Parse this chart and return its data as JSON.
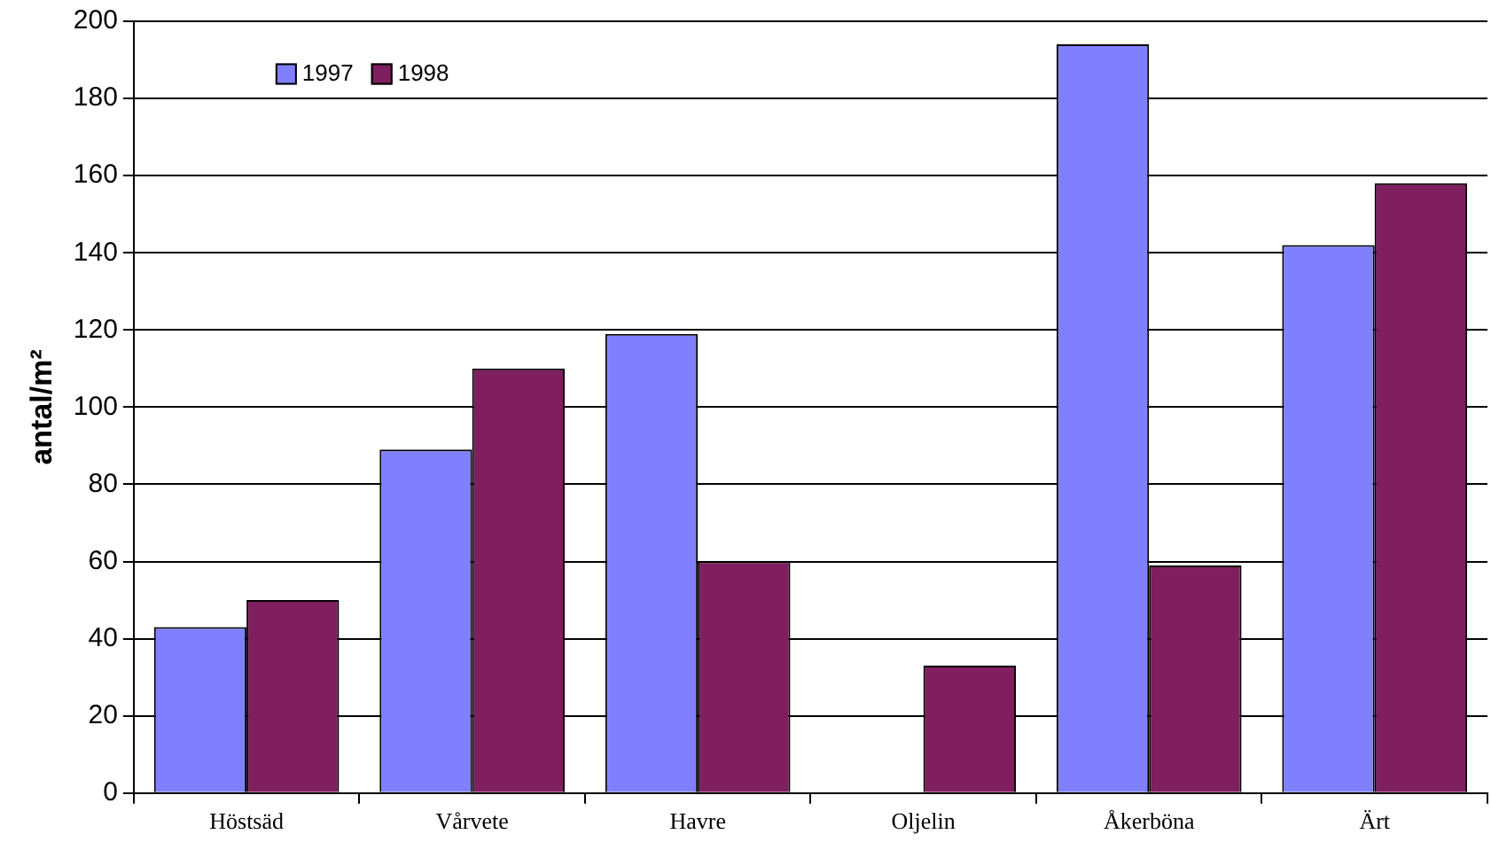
{
  "chart_data": {
    "type": "bar",
    "ylabel": "antal/m²",
    "categories": [
      "Höstsäd",
      "Vårvete",
      "Havre",
      "Oljelin",
      "Åkerböna",
      "Ärt"
    ],
    "series": [
      {
        "name": "1997",
        "color": "#8080ff",
        "values": [
          43,
          89,
          119,
          null,
          194,
          142
        ]
      },
      {
        "name": "1998",
        "color": "#7f1f5f",
        "values": [
          50,
          110,
          60,
          33,
          59,
          158
        ]
      }
    ],
    "ylim": [
      0,
      200
    ],
    "yticks": [
      0,
      20,
      40,
      60,
      80,
      100,
      120,
      140,
      160,
      180,
      200
    ],
    "grid": "y",
    "legend": "top left"
  }
}
